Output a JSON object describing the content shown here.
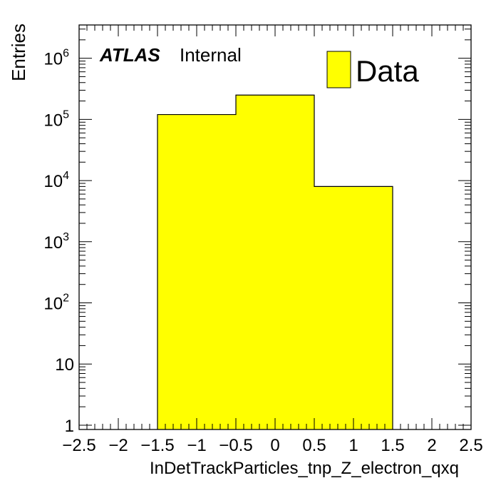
{
  "chart_data": {
    "type": "bar",
    "histogram": true,
    "title": "",
    "xlabel": "InDetTrackParticles_tnp_Z_electron_qxq",
    "ylabel": "Entries",
    "xlim": [
      -2.5,
      2.5
    ],
    "ylim": [
      0.85,
      3500000
    ],
    "yscale": "log",
    "grid": false,
    "legend_position": "top-right",
    "x_ticks": [
      {
        "value": -2.5,
        "label": "−2.5"
      },
      {
        "value": -2,
        "label": "−2"
      },
      {
        "value": -1.5,
        "label": "−1.5"
      },
      {
        "value": -1,
        "label": "−1"
      },
      {
        "value": -0.5,
        "label": "−0.5"
      },
      {
        "value": 0,
        "label": "0"
      },
      {
        "value": 0.5,
        "label": "0.5"
      },
      {
        "value": 1,
        "label": "1"
      },
      {
        "value": 1.5,
        "label": "1.5"
      },
      {
        "value": 2,
        "label": "2"
      },
      {
        "value": 2.5,
        "label": "2.5"
      }
    ],
    "y_ticks": [
      {
        "value": 1,
        "base": "1",
        "exp": ""
      },
      {
        "value": 10,
        "base": "10",
        "exp": ""
      },
      {
        "value": 100,
        "base": "10",
        "exp": "2"
      },
      {
        "value": 1000,
        "base": "10",
        "exp": "3"
      },
      {
        "value": 10000,
        "base": "10",
        "exp": "4"
      },
      {
        "value": 100000,
        "base": "10",
        "exp": "5"
      },
      {
        "value": 1000000,
        "base": "10",
        "exp": "6"
      }
    ],
    "series": [
      {
        "name": "Data",
        "color": "#ffff00",
        "bins": [
          {
            "x0": -1.5,
            "x1": -0.5,
            "value": 120000
          },
          {
            "x0": -0.5,
            "x1": 0.5,
            "value": 250000
          },
          {
            "x0": 0.5,
            "x1": 1.5,
            "value": 8000
          }
        ]
      }
    ],
    "annotations": {
      "experiment": "ATLAS",
      "status": "Internal"
    }
  }
}
